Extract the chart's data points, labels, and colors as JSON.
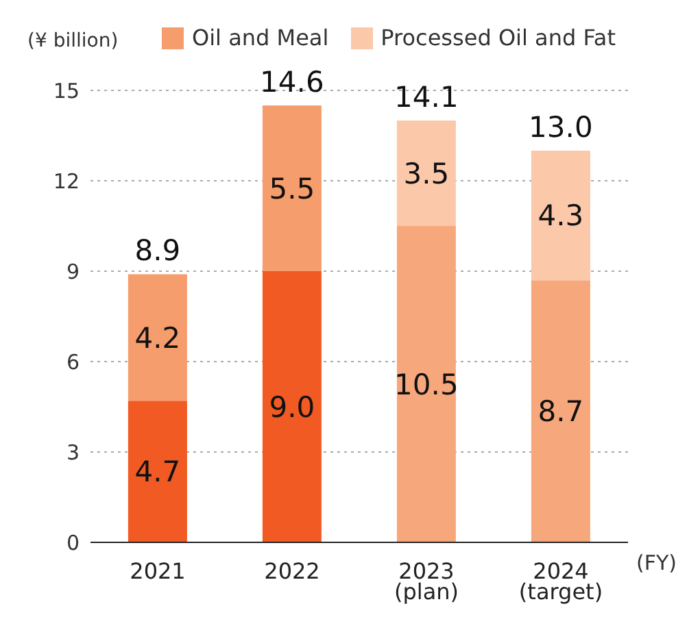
{
  "chart_data": {
    "type": "bar",
    "stacked": true,
    "ylabel": "(¥ billion)",
    "xlabel": "(FY)",
    "categories": [
      "2021",
      "2022",
      "2023\n(plan)",
      "2024\n(target)"
    ],
    "series": [
      {
        "name": "Oil and Meal",
        "color": "#f59d6c",
        "colors": [
          "#f15a22",
          "#f15a22",
          "#f6a87c",
          "#f6a87c"
        ],
        "values": [
          4.7,
          9.0,
          10.5,
          8.7
        ],
        "value_labels": [
          "4.7",
          "9.0",
          "10.5",
          "8.7"
        ]
      },
      {
        "name": "Processed Oil and Fat",
        "color": "#fbc8a9",
        "colors": [
          "#f59d6c",
          "#f59d6c",
          "#fbc8a9",
          "#fbc8a9"
        ],
        "values": [
          4.2,
          5.5,
          3.5,
          4.3
        ],
        "value_labels": [
          "4.2",
          "5.5",
          "3.5",
          "4.3"
        ]
      }
    ],
    "totals": [
      "8.9",
      "14.6",
      "14.1",
      "13.0"
    ],
    "ylim": [
      0,
      15
    ],
    "yticks": [
      0,
      3,
      6,
      9,
      12,
      15
    ],
    "grid": "y",
    "legend": "top"
  }
}
